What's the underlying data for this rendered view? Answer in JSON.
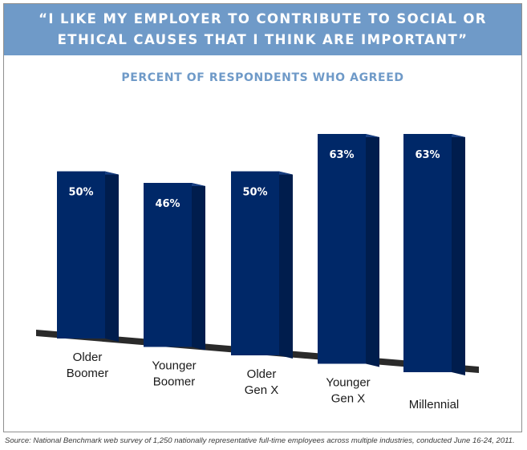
{
  "header": {
    "title": "“I LIKE MY EMPLOYER TO CONTRIBUTE TO SOCIAL OR\nETHICAL CAUSES THAT I THINK ARE IMPORTANT”",
    "subtitle": "PERCENT OF RESPONDENTS WHO AGREED"
  },
  "source": "Source: National Benchmark web survey of 1,250 nationally representative full-time employees across multiple industries, conducted June 16-24, 2011.",
  "colors": {
    "bar_front": "#002868",
    "bar_side": "#001d4d",
    "bar_top": "#183f82",
    "floor": "#2a2a2a",
    "header_bg": "#6f9ac8"
  },
  "chart_data": {
    "type": "bar",
    "title": "“I LIKE MY EMPLOYER TO CONTRIBUTE TO SOCIAL OR ETHICAL CAUSES THAT I THINK ARE IMPORTANT”",
    "subtitle": "PERCENT OF RESPONDENTS WHO AGREED",
    "categories": [
      "Older\nBoomer",
      "Younger\nBoomer",
      "Older\nGen X",
      "Younger\nGen X",
      "Millennial"
    ],
    "values": [
      50,
      46,
      50,
      63,
      63
    ],
    "value_labels": [
      "50%",
      "46%",
      "50%",
      "63%",
      "63%"
    ],
    "unit": "%",
    "ylim": [
      0,
      63
    ],
    "style": "3d",
    "grid": false,
    "legend": "none"
  }
}
